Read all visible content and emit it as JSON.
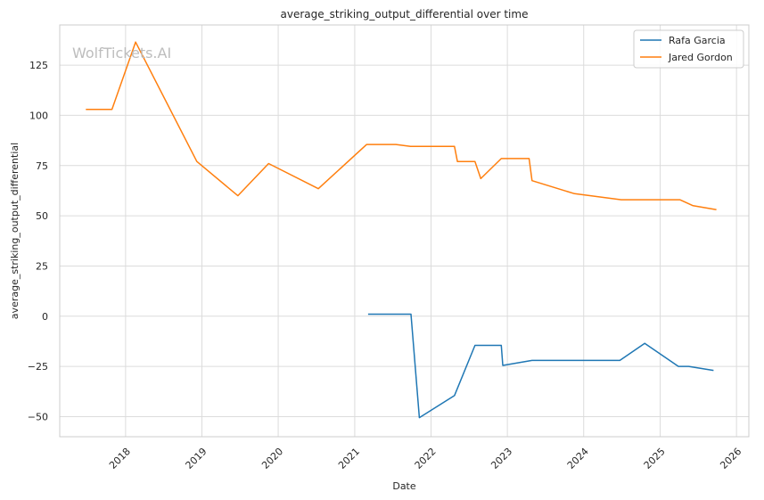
{
  "chart_data": {
    "type": "line",
    "title": "average_striking_output_differential over time",
    "xlabel": "Date",
    "ylabel": "average_striking_output_differential",
    "watermark": "WolfTickets.AI",
    "xlim": [
      "2017-02-20",
      "2026-03-01"
    ],
    "ylim": [
      -60,
      145
    ],
    "x_ticks": [
      "2018",
      "2019",
      "2020",
      "2021",
      "2022",
      "2023",
      "2024",
      "2025",
      "2026"
    ],
    "y_ticks": [
      -50,
      -25,
      0,
      25,
      50,
      75,
      100,
      125
    ],
    "grid": true,
    "legend_position": "top-right",
    "series": [
      {
        "name": "Rafa Garcia",
        "color": "#1f77b4",
        "points": [
          [
            "2021-03-06",
            1
          ],
          [
            "2021-09-27",
            1
          ],
          [
            "2021-11-06",
            -50.5
          ],
          [
            "2022-04-16",
            -40
          ],
          [
            "2022-04-23",
            -39.5
          ],
          [
            "2022-07-30",
            -14.5
          ],
          [
            "2022-12-03",
            -14.5
          ],
          [
            "2022-12-10",
            -24.5
          ],
          [
            "2023-04-29",
            -22
          ],
          [
            "2024-06-22",
            -22
          ],
          [
            "2024-10-19",
            -13.5
          ],
          [
            "2025-03-29",
            -25
          ],
          [
            "2025-05-17",
            -25
          ],
          [
            "2025-09-13",
            -27
          ]
        ]
      },
      {
        "name": "Jared Gordon",
        "color": "#ff7f0e",
        "points": [
          [
            "2017-06-25",
            103
          ],
          [
            "2017-10-28",
            103
          ],
          [
            "2018-02-18",
            136.5
          ],
          [
            "2018-12-08",
            77
          ],
          [
            "2019-06-22",
            60
          ],
          [
            "2019-11-16",
            76
          ],
          [
            "2020-07-11",
            63.5
          ],
          [
            "2021-02-27",
            85.5
          ],
          [
            "2021-07-17",
            85.5
          ],
          [
            "2021-09-25",
            84.5
          ],
          [
            "2022-04-23",
            84.5
          ],
          [
            "2022-05-07",
            77
          ],
          [
            "2022-07-30",
            77
          ],
          [
            "2022-08-27",
            68.5
          ],
          [
            "2022-12-03",
            78.5
          ],
          [
            "2023-04-15",
            78.5
          ],
          [
            "2023-04-29",
            67.5
          ],
          [
            "2023-11-18",
            61
          ],
          [
            "2024-06-29",
            58
          ],
          [
            "2025-04-05",
            58
          ],
          [
            "2025-06-07",
            55
          ],
          [
            "2025-09-27",
            53
          ]
        ]
      }
    ]
  }
}
